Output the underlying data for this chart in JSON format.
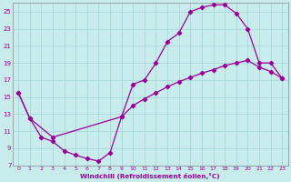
{
  "xlabel": "Windchill (Refroidissement éolien,°C)",
  "xlim": [
    -0.5,
    23.5
  ],
  "ylim": [
    7,
    26
  ],
  "xticks": [
    0,
    1,
    2,
    3,
    4,
    5,
    6,
    7,
    8,
    9,
    10,
    11,
    12,
    13,
    14,
    15,
    16,
    17,
    18,
    19,
    20,
    21,
    22,
    23
  ],
  "yticks": [
    7,
    9,
    11,
    13,
    15,
    17,
    19,
    21,
    23,
    25
  ],
  "bg_color": "#c8ecec",
  "grid_color": "#a8d8d8",
  "line_color": "#990099",
  "line1_x": [
    0,
    1,
    2,
    3,
    4,
    5,
    6,
    7,
    8,
    9,
    10,
    11,
    12,
    13,
    14,
    15,
    16,
    17,
    18,
    19,
    20,
    21,
    22,
    23
  ],
  "line1_y": [
    15.5,
    12.5,
    10.3,
    9.8,
    8.7,
    8.2,
    7.8,
    7.5,
    8.5,
    12.7,
    16.5,
    17.0,
    19.0,
    21.5,
    22.5,
    25.0,
    25.5,
    25.8,
    25.8,
    24.8,
    23.0,
    19.0,
    19.0,
    17.2
  ],
  "line2_x": [
    0,
    1,
    3,
    9,
    10,
    11,
    12,
    13,
    14,
    15,
    16,
    17,
    18,
    19,
    20,
    21,
    22,
    23
  ],
  "line2_y": [
    15.5,
    12.5,
    10.3,
    12.7,
    14.0,
    14.8,
    15.5,
    16.2,
    16.8,
    17.3,
    17.8,
    18.2,
    18.7,
    19.0,
    19.3,
    18.5,
    18.0,
    17.2
  ]
}
